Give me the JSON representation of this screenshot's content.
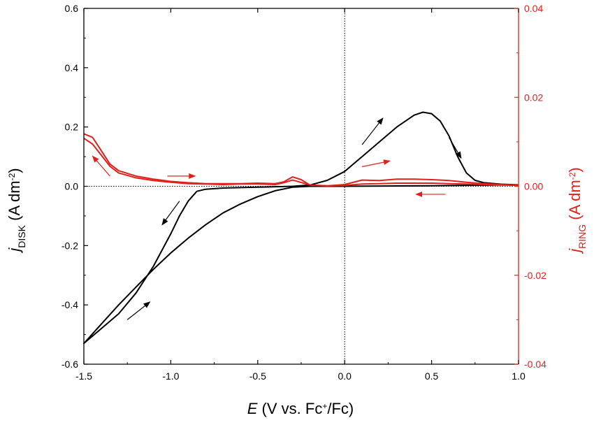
{
  "chart_data": {
    "type": "line",
    "colors": {
      "disk": "#000000",
      "ring": "#e0201a"
    },
    "xaxis": {
      "label_italic": "E",
      "label_main": " (V vs. Fc",
      "label_sup": "+",
      "label_end": "/Fc)",
      "range": [
        -1.5,
        1.0
      ],
      "ticks": [
        "-1.5",
        "-1.0",
        "-0.5",
        "0.0",
        "0.5",
        "1.0"
      ]
    },
    "yaxis_left": {
      "label_italic": "j",
      "label_sub": "DISK",
      "label_main": " (A dm",
      "label_sup": "-2",
      "label_end": ")",
      "range": [
        -0.6,
        0.6
      ],
      "ticks": [
        "-0.6",
        "-0.4",
        "-0.2",
        "0.0",
        "0.2",
        "0.4",
        "0.6"
      ]
    },
    "yaxis_right": {
      "label_italic": "j",
      "label_sub": "RING",
      "label_main": " (A dm",
      "label_sup": "-2",
      "label_end": ")",
      "range": [
        -0.04,
        0.04
      ],
      "ticks": [
        "-0.04",
        "-0.02",
        "0.00",
        "0.02",
        "0.04"
      ]
    },
    "reference_lines": {
      "x": 0.0,
      "y": 0.0,
      "style": "dotted"
    },
    "series": [
      {
        "axis": "left",
        "color": "#000000",
        "points": [
          [
            1.0,
            0.005
          ],
          [
            0.9,
            0.007
          ],
          [
            0.8,
            0.012
          ],
          [
            0.75,
            0.02
          ],
          [
            0.7,
            0.045
          ],
          [
            0.65,
            0.1
          ],
          [
            0.6,
            0.17
          ],
          [
            0.55,
            0.22
          ],
          [
            0.5,
            0.245
          ],
          [
            0.45,
            0.25
          ],
          [
            0.4,
            0.24
          ],
          [
            0.3,
            0.2
          ],
          [
            0.2,
            0.15
          ],
          [
            0.1,
            0.1
          ],
          [
            0.0,
            0.05
          ],
          [
            -0.1,
            0.02
          ],
          [
            -0.2,
            0.004
          ],
          [
            -0.3,
            0.0
          ],
          [
            -0.5,
            -0.003
          ],
          [
            -0.7,
            -0.006
          ],
          [
            -0.8,
            -0.01
          ],
          [
            -0.85,
            -0.017
          ],
          [
            -0.9,
            -0.05
          ],
          [
            -0.95,
            -0.1
          ],
          [
            -1.0,
            -0.16
          ],
          [
            -1.1,
            -0.27
          ],
          [
            -1.2,
            -0.36
          ],
          [
            -1.3,
            -0.43
          ],
          [
            -1.4,
            -0.48
          ],
          [
            -1.5,
            -0.53
          ],
          [
            -1.4,
            -0.465
          ],
          [
            -1.3,
            -0.4
          ],
          [
            -1.2,
            -0.34
          ],
          [
            -1.1,
            -0.28
          ],
          [
            -1.0,
            -0.225
          ],
          [
            -0.9,
            -0.175
          ],
          [
            -0.8,
            -0.13
          ],
          [
            -0.7,
            -0.09
          ],
          [
            -0.6,
            -0.06
          ],
          [
            -0.5,
            -0.035
          ],
          [
            -0.4,
            -0.015
          ],
          [
            -0.3,
            -0.003
          ],
          [
            -0.2,
            0.0
          ],
          [
            0.0,
            0.0
          ],
          [
            0.5,
            0.002
          ],
          [
            1.0,
            0.005
          ]
        ]
      },
      {
        "axis": "right",
        "color": "#e0201a",
        "points": [
          [
            -1.5,
            0.0118
          ],
          [
            -1.45,
            0.011
          ],
          [
            -1.4,
            0.008
          ],
          [
            -1.35,
            0.005
          ],
          [
            -1.3,
            0.0035
          ],
          [
            -1.2,
            0.0023
          ],
          [
            -1.1,
            0.0016
          ],
          [
            -1.0,
            0.0011
          ],
          [
            -0.9,
            0.0008
          ],
          [
            -0.8,
            0.0006
          ],
          [
            -0.7,
            0.0006
          ],
          [
            -0.6,
            0.0006
          ],
          [
            -0.5,
            0.0007
          ],
          [
            -0.4,
            0.0006
          ],
          [
            -0.35,
            0.001
          ],
          [
            -0.3,
            0.0021
          ],
          [
            -0.25,
            0.0015
          ],
          [
            -0.2,
            0.0003
          ],
          [
            -0.1,
            0.0001
          ],
          [
            0.0,
            0.0004
          ],
          [
            0.1,
            0.0014
          ],
          [
            0.2,
            0.0013
          ],
          [
            0.3,
            0.0016
          ],
          [
            0.4,
            0.0016
          ],
          [
            0.5,
            0.0015
          ],
          [
            0.6,
            0.0013
          ],
          [
            0.7,
            0.0009
          ],
          [
            0.8,
            0.0006
          ],
          [
            0.9,
            0.0004
          ],
          [
            1.0,
            0.0003
          ]
        ]
      },
      {
        "axis": "right",
        "color": "#e0201a",
        "points": [
          [
            1.0,
            0.0002
          ],
          [
            0.9,
            0.0003
          ],
          [
            0.8,
            0.0004
          ],
          [
            0.7,
            0.0005
          ],
          [
            0.6,
            0.0006
          ],
          [
            0.5,
            0.0007
          ],
          [
            0.4,
            0.0007
          ],
          [
            0.3,
            0.0007
          ],
          [
            0.2,
            0.0006
          ],
          [
            0.1,
            0.0005
          ],
          [
            0.0,
            0.0002
          ],
          [
            -0.1,
            0.0001
          ],
          [
            -0.2,
            0.0003
          ],
          [
            -0.3,
            0.0014
          ],
          [
            -0.35,
            0.0008
          ],
          [
            -0.4,
            0.0004
          ],
          [
            -0.5,
            0.0005
          ],
          [
            -0.6,
            0.0005
          ],
          [
            -0.7,
            0.0004
          ],
          [
            -0.8,
            0.0005
          ],
          [
            -0.9,
            0.0006
          ],
          [
            -1.0,
            0.0009
          ],
          [
            -1.1,
            0.0013
          ],
          [
            -1.2,
            0.0019
          ],
          [
            -1.3,
            0.003
          ],
          [
            -1.35,
            0.0045
          ],
          [
            -1.4,
            0.007
          ],
          [
            -1.45,
            0.0095
          ],
          [
            -1.5,
            0.0108
          ]
        ]
      }
    ],
    "arrows": [
      {
        "axis": "left",
        "color": "#000000",
        "from": [
          -0.95,
          -0.05
        ],
        "to": [
          -1.05,
          -0.13
        ]
      },
      {
        "axis": "left",
        "color": "#000000",
        "from": [
          -1.25,
          -0.45
        ],
        "to": [
          -1.12,
          -0.39
        ]
      },
      {
        "axis": "left",
        "color": "#000000",
        "from": [
          0.1,
          0.14
        ],
        "to": [
          0.22,
          0.23
        ]
      },
      {
        "axis": "left",
        "color": "#000000",
        "from": [
          0.6,
          0.165
        ],
        "to": [
          0.67,
          0.095
        ]
      },
      {
        "axis": "right",
        "color": "#e0201a",
        "from": [
          -1.35,
          0.0023
        ],
        "to": [
          -1.45,
          0.0068
        ]
      },
      {
        "axis": "right",
        "color": "#e0201a",
        "from": [
          -1.02,
          0.0023
        ],
        "to": [
          -0.86,
          0.0023
        ]
      },
      {
        "axis": "right",
        "color": "#e0201a",
        "from": [
          0.1,
          0.0044
        ],
        "to": [
          0.26,
          0.0057
        ]
      },
      {
        "axis": "right",
        "color": "#e0201a",
        "from": [
          0.58,
          -0.0018
        ],
        "to": [
          0.41,
          -0.0018
        ]
      }
    ]
  }
}
